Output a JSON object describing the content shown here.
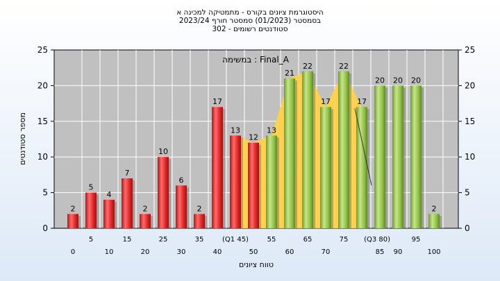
{
  "chart_data": {
    "type": "bar",
    "title_lines": [
      "היסטוגרמת ציונים בקורס - מתמטיקה למכינה א",
      "בסמסטר   (01/2023)  סמסטר חורף  2023/24",
      "302 - סטודנטים רשומים"
    ],
    "annotation": "במשימה : Final_A",
    "xlabel": "טווח ציונים",
    "ylabel": "מספר סטודנטים",
    "ylim": [
      0,
      25
    ],
    "y_ticks": [
      0,
      5,
      10,
      15,
      20,
      25
    ],
    "x_tick_labels_row1": [
      "5",
      "15",
      "25",
      "35",
      "(Q1 45)",
      "55",
      "65",
      "75",
      "(Q3 80)",
      "95"
    ],
    "x_tick_labels_row2": [
      "0",
      "10",
      "20",
      "30",
      "40",
      "50",
      "60",
      "70",
      "85",
      "90",
      "100"
    ],
    "categories": [
      "0",
      "5",
      "10",
      "15",
      "20",
      "25",
      "30",
      "35",
      "40",
      "45",
      "50",
      "55",
      "60",
      "65",
      "70",
      "75",
      "80",
      "85",
      "90",
      "95",
      "100"
    ],
    "values": [
      2,
      5,
      4,
      7,
      2,
      10,
      6,
      2,
      17,
      13,
      12,
      13,
      21,
      22,
      17,
      22,
      17,
      20,
      20,
      20,
      2
    ],
    "bar_colors": [
      "red",
      "red",
      "red",
      "red",
      "red",
      "red",
      "red",
      "red",
      "red",
      "red",
      "red",
      "green",
      "green",
      "green",
      "green",
      "green",
      "green",
      "green",
      "green",
      "green",
      "green"
    ],
    "area_band": {
      "from": "45",
      "to": "80"
    },
    "grid": true,
    "colors": {
      "plot_bg": "#c0c0c0",
      "bar_red": "#e53030",
      "bar_green": "#8fc243",
      "area": "#ffd24a"
    }
  }
}
